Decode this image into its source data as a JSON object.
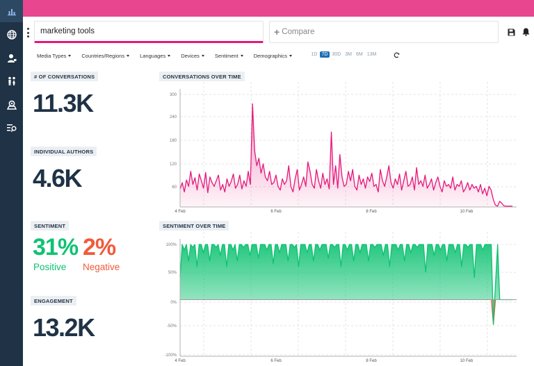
{
  "sidebar": {
    "items": [
      {
        "icon": "bar-chart-icon",
        "active": true
      },
      {
        "icon": "globe-icon",
        "active": false
      },
      {
        "icon": "user-icon",
        "active": false
      },
      {
        "icon": "people-icon",
        "active": false
      },
      {
        "icon": "location-pin-icon",
        "active": false
      },
      {
        "icon": "search-list-icon",
        "active": false
      }
    ]
  },
  "header": {
    "accent_color": "#e8468f",
    "search_value": "marketing tools",
    "compare_placeholder": "Compare",
    "save_icon": "save-icon",
    "bell_icon": "bell-icon"
  },
  "filters": {
    "items": [
      "Media Types",
      "Countries/Regions",
      "Languages",
      "Devices",
      "Sentiment",
      "Demographics"
    ],
    "ranges": [
      "1D",
      "7D",
      "30D",
      "3M",
      "6M",
      "13M"
    ],
    "active_range": "7D"
  },
  "metrics": {
    "conversations": {
      "label": "# OF CONVERSATIONS",
      "value": "11.3K"
    },
    "authors": {
      "label": "INDIVIDUAL AUTHORS",
      "value": "4.6K"
    },
    "sentiment": {
      "label": "SENTIMENT",
      "positive_value": "31%",
      "positive_label": "Positive",
      "negative_value": "2%",
      "negative_label": "Negative"
    },
    "engagement": {
      "label": "ENGAGEMENT",
      "value": "13.2K"
    }
  },
  "chart_data": [
    {
      "type": "area",
      "title": "CONVERSATIONS OVER TIME",
      "color": "#e5177a",
      "y_ticks": [
        "60",
        "120",
        "180",
        "240",
        "300"
      ],
      "x_ticks": [
        "4 Feb",
        "6 Feb",
        "8 Feb",
        "10 Feb"
      ],
      "ylim": [
        0,
        300
      ],
      "series": [
        {
          "values": [
            48,
            65,
            40,
            72,
            55,
            95,
            60,
            78,
            45,
            88,
            70,
            50,
            92,
            38,
            80,
            65,
            55,
            70,
            85,
            45,
            60,
            40,
            75,
            55,
            68,
            88,
            50,
            60,
            85,
            48,
            70,
            55,
            95,
            60,
            275,
            150,
            110,
            130,
            90,
            115,
            80,
            70,
            95,
            60,
            65,
            85,
            55,
            45,
            75,
            60,
            70,
            110,
            55,
            40,
            75,
            100,
            45,
            60,
            80,
            55,
            120,
            95,
            60,
            50,
            100,
            70,
            50,
            90,
            60,
            75,
            48,
            200,
            60,
            110,
            50,
            140,
            80,
            55,
            60,
            95,
            70,
            100,
            55,
            45,
            85,
            60,
            75,
            50,
            80,
            68,
            90,
            55,
            60,
            40,
            100,
            70,
            55,
            80,
            110,
            65,
            50,
            75,
            60,
            88,
            45,
            70,
            95,
            55,
            60,
            80,
            45,
            105,
            60,
            70,
            55,
            85,
            50,
            60,
            75,
            45,
            65,
            80,
            55,
            40,
            70,
            55,
            60,
            50,
            80,
            45,
            60,
            55,
            70,
            40,
            50,
            65,
            45,
            60,
            50,
            55,
            40,
            60,
            35,
            50,
            30,
            55,
            45,
            20,
            5,
            2,
            15,
            10,
            3,
            2,
            2,
            2,
            2
          ]
        }
      ]
    },
    {
      "type": "area",
      "title": "SENTIMENT OVER TIME",
      "color": "#0ec272",
      "negative_color": "#f15a3b",
      "y_ticks": [
        "100%",
        "50%",
        "0%",
        "-50%",
        "-100%"
      ],
      "x_ticks": [
        "4 Feb",
        "6 Feb",
        "8 Feb",
        "10 Feb"
      ],
      "ylim": [
        -100,
        100
      ],
      "series": [
        {
          "values": [
            40,
            100,
            90,
            100,
            70,
            100,
            95,
            100,
            60,
            100,
            100,
            85,
            100,
            100,
            70,
            100,
            100,
            95,
            100,
            80,
            100,
            100,
            60,
            100,
            100,
            90,
            100,
            70,
            100,
            100,
            95,
            100,
            100,
            80,
            100,
            100,
            100,
            75,
            100,
            100,
            100,
            90,
            100,
            100,
            65,
            100,
            100,
            85,
            100,
            100,
            100,
            70,
            100,
            100,
            95,
            100,
            60,
            100,
            100,
            100,
            85,
            100,
            100,
            70,
            100,
            100,
            90,
            100,
            100,
            100,
            75,
            100,
            100,
            95,
            100,
            100,
            60,
            100,
            100,
            90,
            100,
            100,
            70,
            100,
            100,
            85,
            100,
            100,
            100,
            70,
            100,
            100,
            95,
            100,
            100,
            100,
            80,
            100,
            100,
            60,
            100,
            100,
            100,
            90,
            100,
            100,
            70,
            100,
            100,
            85,
            100,
            100,
            95,
            100,
            100,
            100,
            50,
            100,
            100,
            100,
            80,
            100,
            100,
            90,
            100,
            100,
            70,
            100,
            100,
            100,
            85,
            100,
            100,
            60,
            100,
            100,
            95,
            100,
            100,
            40,
            100,
            100,
            100,
            90,
            100,
            100,
            100,
            100,
            -45,
            30,
            100,
            0,
            0,
            0,
            0,
            0,
            0,
            0
          ]
        }
      ]
    }
  ]
}
